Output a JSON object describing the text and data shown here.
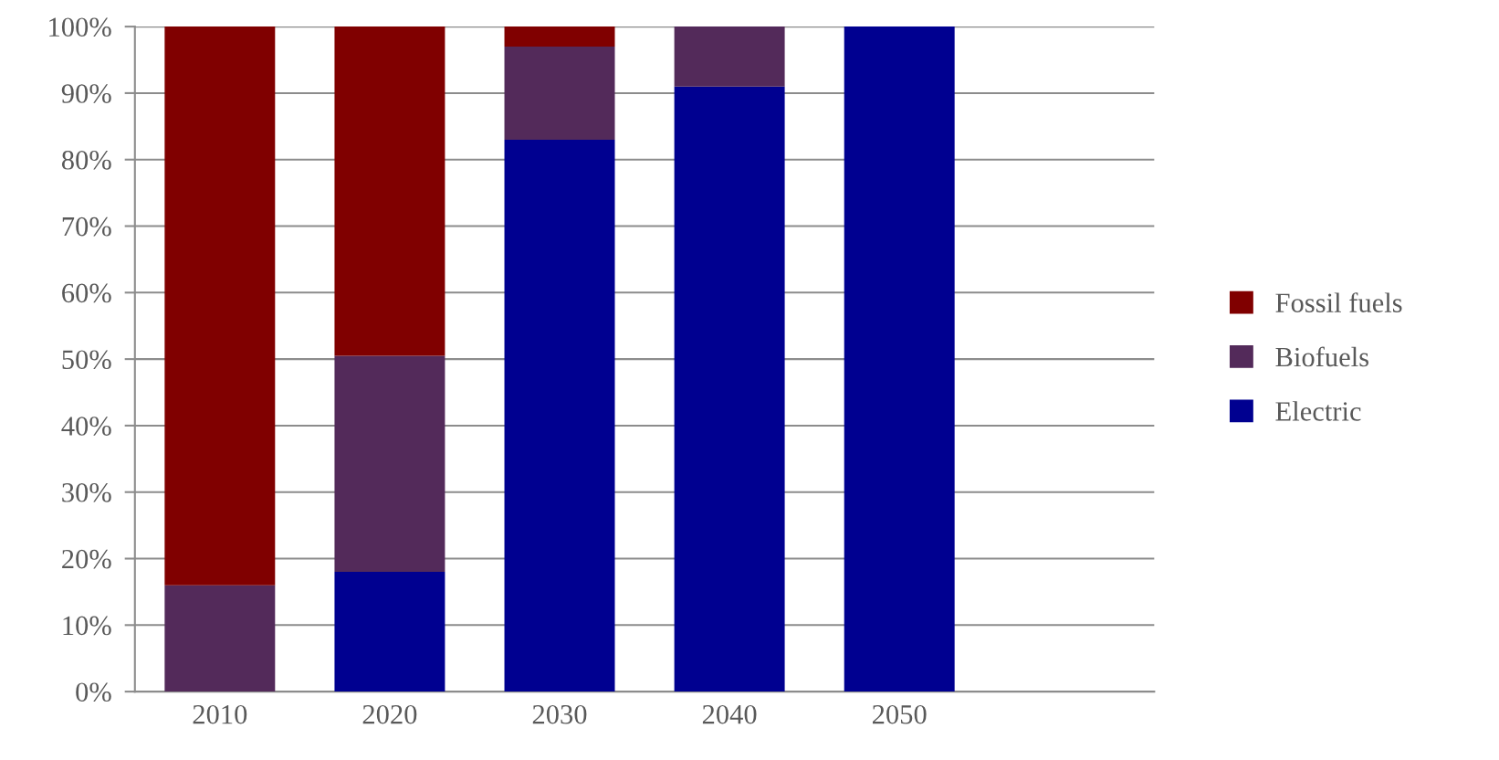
{
  "chart_data": {
    "type": "bar",
    "stacked": true,
    "categories": [
      "2010",
      "2020",
      "2030",
      "2040",
      "2050",
      null
    ],
    "series": [
      {
        "name": "Electric",
        "color": "#000090",
        "values": [
          0,
          18,
          83,
          91,
          100,
          null
        ]
      },
      {
        "name": "Biofuels",
        "color": "#532a5a",
        "values": [
          16,
          32.5,
          14,
          9,
          0,
          null
        ]
      },
      {
        "name": "Fossil fuels",
        "color": "#800000",
        "values": [
          84,
          49.5,
          3,
          0,
          0,
          null
        ]
      }
    ],
    "ylim": [
      0,
      100
    ],
    "yticks": [
      {
        "value": 0,
        "label": "0%"
      },
      {
        "value": 10,
        "label": "10%"
      },
      {
        "value": 20,
        "label": "20%"
      },
      {
        "value": 30,
        "label": "30%"
      },
      {
        "value": 40,
        "label": "40%"
      },
      {
        "value": 50,
        "label": "50%"
      },
      {
        "value": 60,
        "label": "60%"
      },
      {
        "value": 70,
        "label": "70%"
      },
      {
        "value": 80,
        "label": "80%"
      },
      {
        "value": 90,
        "label": "90%"
      },
      {
        "value": 100,
        "label": "100%"
      }
    ],
    "grid": "y",
    "legend": "right"
  }
}
